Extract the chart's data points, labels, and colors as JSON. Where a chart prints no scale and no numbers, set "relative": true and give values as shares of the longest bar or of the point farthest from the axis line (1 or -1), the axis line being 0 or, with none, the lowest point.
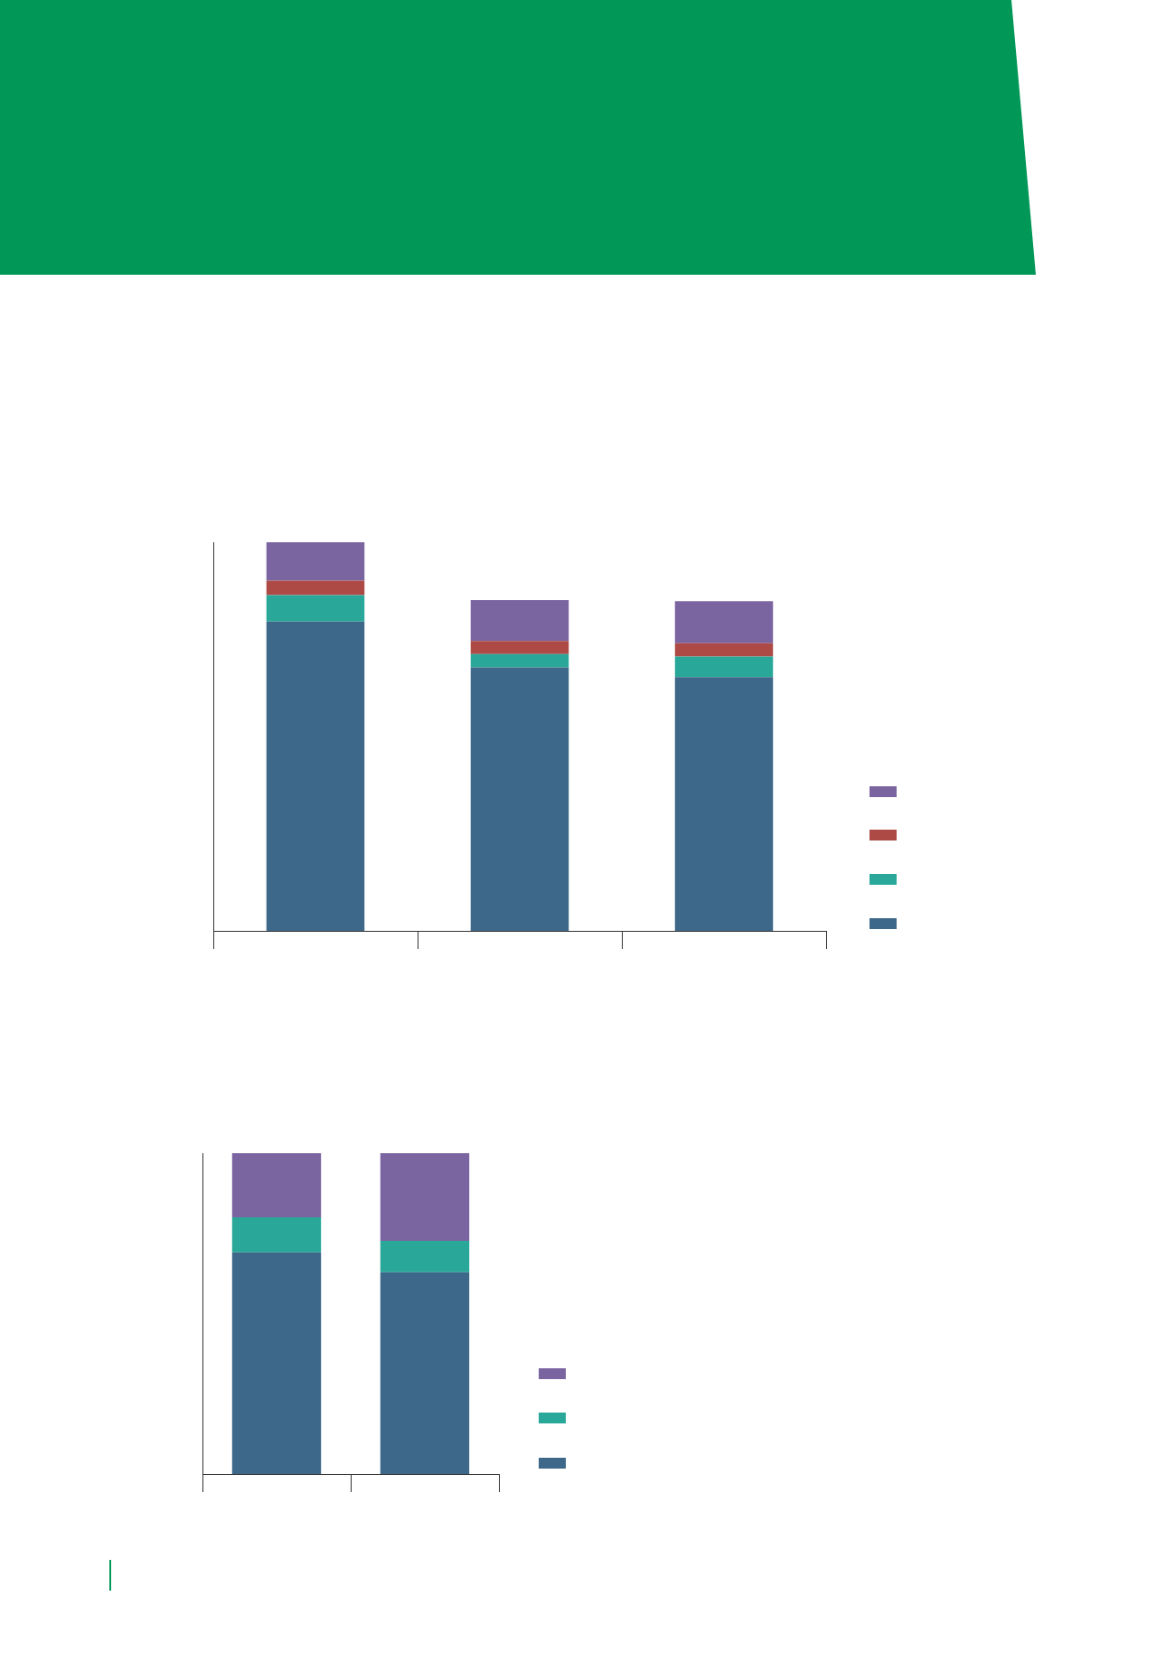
{
  "chart_data": [
    {
      "type": "bar",
      "stacked": true,
      "relative": true,
      "categories": [
        null,
        null,
        null
      ],
      "series": [
        {
          "color": "#3d6889",
          "values": [
            0.796,
            0.678,
            0.653
          ]
        },
        {
          "color": "#29a89a",
          "values": [
            0.068,
            0.034,
            0.053
          ]
        },
        {
          "color": "#ad4a45",
          "values": [
            0.037,
            0.034,
            0.034
          ]
        },
        {
          "color": "#7b65a0",
          "values": [
            0.099,
            0.105,
            0.108
          ]
        }
      ]
    },
    {
      "type": "bar",
      "stacked": true,
      "relative": true,
      "categories": [
        null,
        null
      ],
      "series": [
        {
          "color": "#3d6889",
          "values": [
            0.691,
            0.629
          ]
        },
        {
          "color": "#29a89a",
          "values": [
            0.109,
            0.098
          ]
        },
        {
          "color": "#7b65a0",
          "values": [
            0.2,
            0.273
          ]
        }
      ]
    }
  ]
}
